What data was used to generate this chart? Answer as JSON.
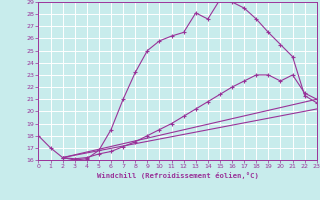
{
  "xlabel": "Windchill (Refroidissement éolien,°C)",
  "background_color": "#c8ecec",
  "grid_color": "#ffffff",
  "line_color": "#993399",
  "xmin": 0,
  "xmax": 23,
  "ymin": 16,
  "ymax": 29,
  "line1_x": [
    0,
    1,
    2,
    3,
    4,
    5,
    6,
    7,
    8,
    9,
    10,
    11,
    12,
    13,
    14,
    15,
    16,
    17,
    18,
    19,
    20,
    21,
    22,
    23
  ],
  "line1_y": [
    18.0,
    17.0,
    16.2,
    16.0,
    16.1,
    16.8,
    18.5,
    21.0,
    23.2,
    25.0,
    25.8,
    26.2,
    26.5,
    28.1,
    27.6,
    29.2,
    29.0,
    28.5,
    27.6,
    26.5,
    25.5,
    24.5,
    21.3,
    20.7
  ],
  "line2_x": [
    2,
    3,
    4,
    5,
    6,
    7,
    8,
    9,
    10,
    11,
    12,
    13,
    14,
    15,
    16,
    17,
    18,
    19,
    20,
    21,
    22,
    23
  ],
  "line2_y": [
    16.2,
    16.1,
    16.2,
    16.5,
    16.7,
    17.1,
    17.5,
    18.0,
    18.5,
    19.0,
    19.6,
    20.2,
    20.8,
    21.4,
    22.0,
    22.5,
    23.0,
    23.0,
    22.5,
    23.0,
    21.5,
    21.0
  ],
  "line3_x": [
    2,
    23
  ],
  "line3_y": [
    16.2,
    21.0
  ],
  "line4_x": [
    2,
    23
  ],
  "line4_y": [
    16.2,
    20.2
  ],
  "yticks": [
    16,
    17,
    18,
    19,
    20,
    21,
    22,
    23,
    24,
    25,
    26,
    27,
    28,
    29
  ],
  "xticks": [
    0,
    1,
    2,
    3,
    4,
    5,
    6,
    7,
    8,
    9,
    10,
    11,
    12,
    13,
    14,
    15,
    16,
    17,
    18,
    19,
    20,
    21,
    22,
    23
  ]
}
